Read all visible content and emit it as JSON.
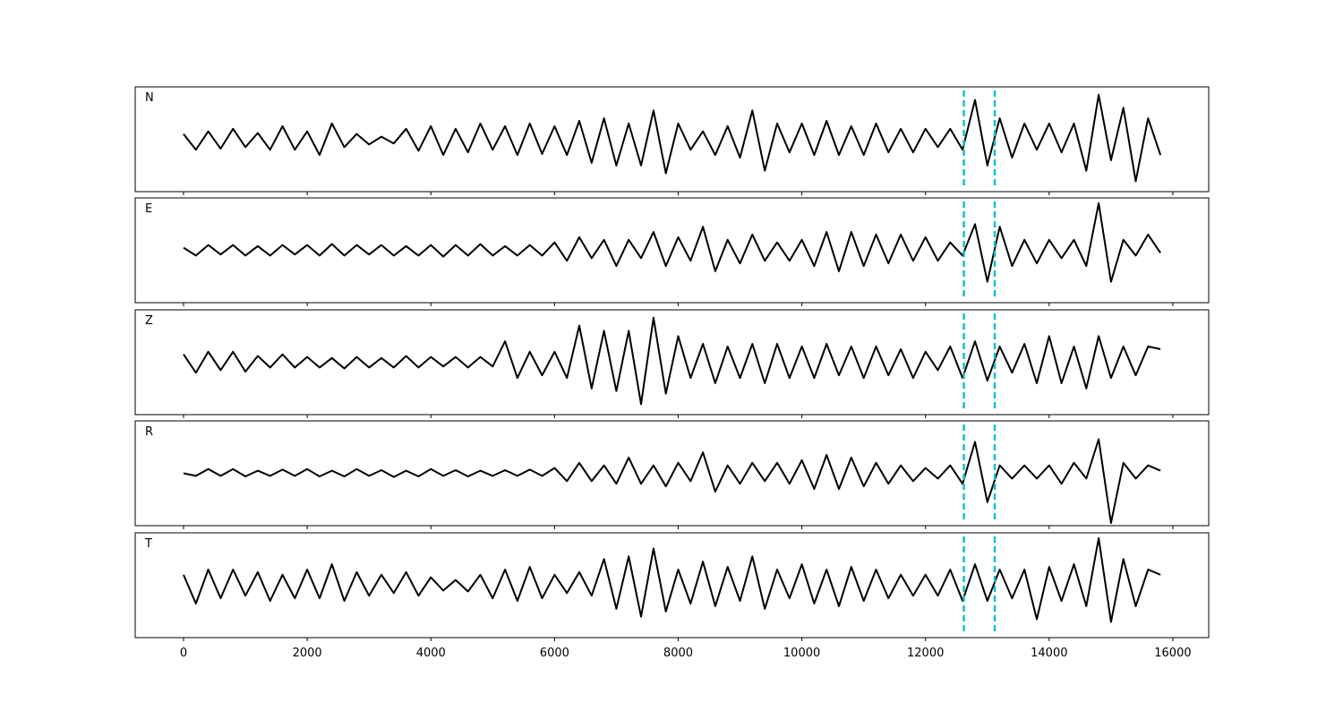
{
  "chart_data": [
    {
      "type": "line",
      "title": "N",
      "color": "#000000",
      "xlim": [
        -782,
        16580
      ],
      "ylim": [
        -1,
        1
      ],
      "xticks": [
        0,
        2000,
        4000,
        6000,
        8000,
        10000,
        12000,
        14000,
        16000
      ],
      "vlines": [
        12620,
        13120
      ],
      "vline_color": "#17becf",
      "x": [
        0,
        200,
        400,
        600,
        800,
        1000,
        1200,
        1400,
        1600,
        1800,
        2000,
        2200,
        2400,
        2600,
        2800,
        3000,
        3200,
        3400,
        3600,
        3800,
        4000,
        4200,
        4400,
        4600,
        4800,
        5000,
        5200,
        5400,
        5600,
        5800,
        6000,
        6200,
        6400,
        6600,
        6800,
        7000,
        7200,
        7400,
        7600,
        7800,
        8000,
        8200,
        8400,
        8600,
        8800,
        9000,
        9200,
        9400,
        9600,
        9800,
        10000,
        10200,
        10400,
        10600,
        10800,
        11000,
        11200,
        11400,
        11600,
        11800,
        12000,
        12200,
        12400,
        12600,
        12800,
        13000,
        13200,
        13400,
        13600,
        13800,
        14000,
        14200,
        14400,
        14600,
        14800,
        15000,
        15200,
        15400,
        15600,
        15800
      ],
      "values": [
        0.1,
        -0.2,
        0.15,
        -0.18,
        0.2,
        -0.15,
        0.12,
        -0.2,
        0.25,
        -0.2,
        0.15,
        -0.3,
        0.3,
        -0.15,
        0.1,
        -0.1,
        0.05,
        -0.08,
        0.2,
        -0.22,
        0.25,
        -0.3,
        0.2,
        -0.25,
        0.3,
        -0.2,
        0.25,
        -0.3,
        0.3,
        -0.28,
        0.25,
        -0.3,
        0.35,
        -0.45,
        0.4,
        -0.5,
        0.3,
        -0.5,
        0.55,
        -0.65,
        0.3,
        -0.2,
        0.15,
        -0.3,
        0.25,
        -0.35,
        0.55,
        -0.6,
        0.3,
        -0.25,
        0.3,
        -0.3,
        0.35,
        -0.3,
        0.25,
        -0.3,
        0.3,
        -0.25,
        0.2,
        -0.25,
        0.2,
        -0.15,
        0.2,
        -0.2,
        0.75,
        -0.5,
        0.4,
        -0.35,
        0.3,
        -0.2,
        0.3,
        -0.25,
        0.3,
        -0.6,
        0.85,
        -0.4,
        0.6,
        -0.8,
        0.4,
        -0.3
      ]
    },
    {
      "type": "line",
      "title": "E",
      "color": "#000000",
      "xlim": [
        -782,
        16580
      ],
      "ylim": [
        -1,
        1
      ],
      "xticks": [
        0,
        2000,
        4000,
        6000,
        8000,
        10000,
        12000,
        14000,
        16000
      ],
      "vlines": [
        12620,
        13120
      ],
      "vline_color": "#17becf",
      "x": [
        0,
        200,
        400,
        600,
        800,
        1000,
        1200,
        1400,
        1600,
        1800,
        2000,
        2200,
        2400,
        2600,
        2800,
        3000,
        3200,
        3400,
        3600,
        3800,
        4000,
        4200,
        4400,
        4600,
        4800,
        5000,
        5200,
        5400,
        5600,
        5800,
        6000,
        6200,
        6400,
        6600,
        6800,
        7000,
        7200,
        7400,
        7600,
        7800,
        8000,
        8200,
        8400,
        8600,
        8800,
        9000,
        9200,
        9400,
        9600,
        9800,
        10000,
        10200,
        10400,
        10600,
        10800,
        11000,
        11200,
        11400,
        11600,
        11800,
        12000,
        12200,
        12400,
        12600,
        12800,
        13000,
        13200,
        13400,
        13600,
        13800,
        14000,
        14200,
        14400,
        14600,
        14800,
        15000,
        15200,
        15400,
        15600,
        15800
      ],
      "values": [
        0.05,
        -0.1,
        0.1,
        -0.08,
        0.1,
        -0.1,
        0.08,
        -0.1,
        0.1,
        -0.08,
        0.1,
        -0.1,
        0.12,
        -0.1,
        0.1,
        -0.08,
        0.1,
        -0.1,
        0.08,
        -0.1,
        0.1,
        -0.12,
        0.1,
        -0.1,
        0.12,
        -0.1,
        0.08,
        -0.1,
        0.1,
        -0.1,
        0.15,
        -0.2,
        0.25,
        -0.15,
        0.2,
        -0.3,
        0.2,
        -0.15,
        0.35,
        -0.3,
        0.25,
        -0.2,
        0.45,
        -0.4,
        0.2,
        -0.25,
        0.3,
        -0.2,
        0.15,
        -0.2,
        0.2,
        -0.3,
        0.35,
        -0.4,
        0.35,
        -0.3,
        0.3,
        -0.25,
        0.3,
        -0.2,
        0.25,
        -0.2,
        0.15,
        -0.1,
        0.5,
        -0.6,
        0.45,
        -0.3,
        0.2,
        -0.25,
        0.2,
        -0.15,
        0.2,
        -0.3,
        0.9,
        -0.6,
        0.2,
        -0.1,
        0.3,
        -0.05
      ]
    },
    {
      "type": "line",
      "title": "Z",
      "color": "#000000",
      "xlim": [
        -782,
        16580
      ],
      "ylim": [
        -1,
        1
      ],
      "xticks": [
        0,
        2000,
        4000,
        6000,
        8000,
        10000,
        12000,
        14000,
        16000
      ],
      "vlines": [
        12620,
        13120
      ],
      "vline_color": "#17becf",
      "x": [
        0,
        200,
        400,
        600,
        800,
        1000,
        1200,
        1400,
        1600,
        1800,
        2000,
        2200,
        2400,
        2600,
        2800,
        3000,
        3200,
        3400,
        3600,
        3800,
        4000,
        4200,
        4400,
        4600,
        4800,
        5000,
        5200,
        5400,
        5600,
        5800,
        6000,
        6200,
        6400,
        6600,
        6800,
        7000,
        7200,
        7400,
        7600,
        7800,
        8000,
        8200,
        8400,
        8600,
        8800,
        9000,
        9200,
        9400,
        9600,
        9800,
        10000,
        10200,
        10400,
        10600,
        10800,
        11000,
        11200,
        11400,
        11600,
        11800,
        12000,
        12200,
        12400,
        12600,
        12800,
        13000,
        13200,
        13400,
        13600,
        13800,
        14000,
        14200,
        14400,
        14600,
        14800,
        15000,
        15200,
        15400,
        15600,
        15800
      ],
      "values": [
        0.15,
        -0.2,
        0.2,
        -0.15,
        0.2,
        -0.18,
        0.12,
        -0.1,
        0.15,
        -0.1,
        0.1,
        -0.1,
        0.08,
        -0.12,
        0.1,
        -0.1,
        0.08,
        -0.1,
        0.12,
        -0.1,
        0.1,
        -0.08,
        0.1,
        -0.1,
        0.1,
        -0.08,
        0.4,
        -0.3,
        0.2,
        -0.25,
        0.2,
        -0.3,
        0.7,
        -0.5,
        0.6,
        -0.55,
        0.6,
        -0.8,
        0.85,
        -0.6,
        0.5,
        -0.3,
        0.35,
        -0.4,
        0.3,
        -0.3,
        0.35,
        -0.4,
        0.35,
        -0.3,
        0.3,
        -0.3,
        0.35,
        -0.25,
        0.3,
        -0.3,
        0.3,
        -0.25,
        0.25,
        -0.3,
        0.2,
        -0.15,
        0.3,
        -0.3,
        0.4,
        -0.35,
        0.3,
        -0.2,
        0.35,
        -0.4,
        0.5,
        -0.4,
        0.3,
        -0.5,
        0.5,
        -0.3,
        0.3,
        -0.25,
        0.3,
        0.25
      ]
    },
    {
      "type": "line",
      "title": "R",
      "color": "#000000",
      "xlim": [
        -782,
        16580
      ],
      "ylim": [
        -1,
        1
      ],
      "xticks": [
        0,
        2000,
        4000,
        6000,
        8000,
        10000,
        12000,
        14000,
        16000
      ],
      "vlines": [
        12620,
        13120
      ],
      "vline_color": "#17becf",
      "x": [
        0,
        200,
        400,
        600,
        800,
        1000,
        1200,
        1400,
        1600,
        1800,
        2000,
        2200,
        2400,
        2600,
        2800,
        3000,
        3200,
        3400,
        3600,
        3800,
        4000,
        4200,
        4400,
        4600,
        4800,
        5000,
        5200,
        5400,
        5600,
        5800,
        6000,
        6200,
        6400,
        6600,
        6800,
        7000,
        7200,
        7400,
        7600,
        7800,
        8000,
        8200,
        8400,
        8600,
        8800,
        9000,
        9200,
        9400,
        9600,
        9800,
        10000,
        10200,
        10400,
        10600,
        10800,
        11000,
        11200,
        11400,
        11600,
        11800,
        12000,
        12200,
        12400,
        12600,
        12800,
        13000,
        13200,
        13400,
        13600,
        13800,
        14000,
        14200,
        14400,
        14600,
        14800,
        15000,
        15200,
        15400,
        15600,
        15800
      ],
      "values": [
        0.0,
        -0.05,
        0.08,
        -0.05,
        0.08,
        -0.06,
        0.05,
        -0.05,
        0.07,
        -0.05,
        0.08,
        -0.06,
        0.05,
        -0.06,
        0.08,
        -0.05,
        0.06,
        -0.07,
        0.05,
        -0.06,
        0.08,
        -0.05,
        0.06,
        -0.06,
        0.05,
        -0.05,
        0.06,
        -0.05,
        0.07,
        -0.05,
        0.1,
        -0.15,
        0.2,
        -0.15,
        0.15,
        -0.2,
        0.3,
        -0.2,
        0.15,
        -0.25,
        0.2,
        -0.15,
        0.4,
        -0.35,
        0.15,
        -0.2,
        0.2,
        -0.15,
        0.2,
        -0.2,
        0.25,
        -0.3,
        0.35,
        -0.3,
        0.3,
        -0.25,
        0.2,
        -0.2,
        0.15,
        -0.15,
        0.1,
        -0.1,
        0.15,
        -0.2,
        0.6,
        -0.55,
        0.15,
        -0.1,
        0.15,
        -0.1,
        0.15,
        -0.2,
        0.2,
        -0.1,
        0.65,
        -0.95,
        0.2,
        -0.1,
        0.15,
        0.05
      ]
    },
    {
      "type": "line",
      "title": "T",
      "color": "#000000",
      "xlim": [
        -782,
        16580
      ],
      "ylim": [
        -1,
        1
      ],
      "xticks": [
        0,
        2000,
        4000,
        6000,
        8000,
        10000,
        12000,
        14000,
        16000
      ],
      "vlines": [
        12620,
        13120
      ],
      "vline_color": "#17becf",
      "x": [
        0,
        200,
        400,
        600,
        800,
        1000,
        1200,
        1400,
        1600,
        1800,
        2000,
        2200,
        2400,
        2600,
        2800,
        3000,
        3200,
        3400,
        3600,
        3800,
        4000,
        4200,
        4400,
        4600,
        4800,
        5000,
        5200,
        5400,
        5600,
        5800,
        6000,
        6200,
        6400,
        6600,
        6800,
        7000,
        7200,
        7400,
        7600,
        7800,
        8000,
        8200,
        8400,
        8600,
        8800,
        9000,
        9200,
        9400,
        9600,
        9800,
        10000,
        10200,
        10400,
        10600,
        10800,
        11000,
        11200,
        11400,
        11600,
        11800,
        12000,
        12200,
        12400,
        12600,
        12800,
        13000,
        13200,
        13400,
        13600,
        13800,
        14000,
        14200,
        14400,
        14600,
        14800,
        15000,
        15200,
        15400,
        15600,
        15800
      ],
      "values": [
        0.2,
        -0.35,
        0.3,
        -0.25,
        0.3,
        -0.2,
        0.25,
        -0.3,
        0.2,
        -0.25,
        0.3,
        -0.25,
        0.4,
        -0.3,
        0.25,
        -0.2,
        0.2,
        -0.15,
        0.25,
        -0.2,
        0.15,
        -0.1,
        0.1,
        -0.12,
        0.2,
        -0.25,
        0.3,
        -0.3,
        0.35,
        -0.25,
        0.2,
        -0.15,
        0.25,
        -0.2,
        0.5,
        -0.45,
        0.55,
        -0.6,
        0.7,
        -0.5,
        0.3,
        -0.35,
        0.45,
        -0.4,
        0.35,
        -0.3,
        0.55,
        -0.45,
        0.3,
        -0.25,
        0.4,
        -0.35,
        0.3,
        -0.4,
        0.35,
        -0.3,
        0.3,
        -0.25,
        0.2,
        -0.2,
        0.2,
        -0.2,
        0.3,
        -0.3,
        0.4,
        -0.3,
        0.3,
        -0.25,
        0.3,
        -0.65,
        0.35,
        -0.3,
        0.4,
        -0.4,
        0.9,
        -0.7,
        0.5,
        -0.4,
        0.3,
        0.2
      ]
    }
  ]
}
